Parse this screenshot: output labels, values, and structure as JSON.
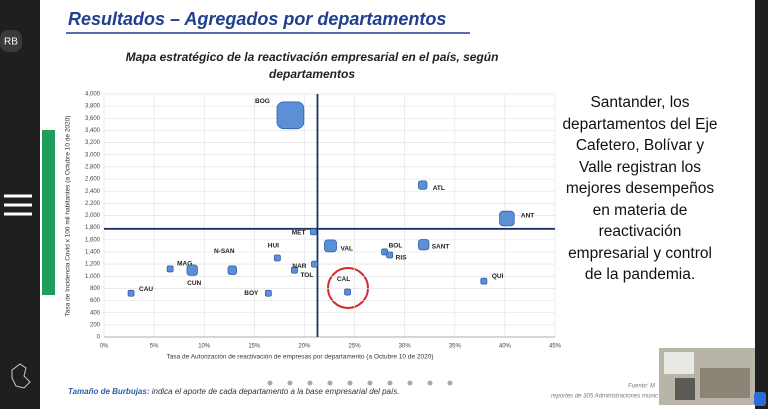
{
  "slide": {
    "badge": "RB",
    "heading": "Resultados – Agregados por departamentos",
    "side_text": "Santander, los departamentos del Eje Cafetero, Bolívar y Valle registran los mejores desempeños en materia de reactivación empresarial y control de la pandemia.",
    "footer_label": "Tamaño de Burbujas:",
    "footer_text": " indica el aporte de cada departamento a la base empresarial del país.",
    "source_line1": "Fuente: M",
    "source_line2": "reportes de 305 Administraciones munic"
  },
  "chart_data": {
    "type": "bubble",
    "title": "Mapa estratégico de la reactivación empresarial en el país, según departamentos",
    "x_label": "Tasa de Autorización de reactivación de empresas por departamento (a Octubre 10 de 2020)",
    "y_label": "Tasa de Incidencia Covid x 100 mil habitantes (a Octubre 10 de 2020)",
    "categories": [
      "BOG",
      "ATL",
      "ANT",
      "MET",
      "VAL",
      "BOL",
      "SANT",
      "RIS",
      "HUI",
      "NAR",
      "TOL",
      "N-SAN",
      "MAG",
      "CUN",
      "QUI",
      "CAL",
      "BOY",
      "CAU"
    ],
    "x": [
      18.6,
      31.8,
      40.2,
      20.9,
      22.6,
      28.0,
      31.9,
      28.5,
      17.3,
      19.0,
      21.0,
      12.8,
      6.6,
      8.8,
      37.9,
      24.3,
      16.4,
      2.7
    ],
    "values": [
      3650,
      2500,
      1950,
      1730,
      1500,
      1400,
      1520,
      1350,
      1300,
      1100,
      1200,
      1100,
      1120,
      1100,
      920,
      740,
      720,
      720
    ],
    "sizes": [
      20,
      2,
      6,
      1,
      4,
      1,
      3,
      1,
      1,
      1,
      1,
      2,
      1,
      3,
      1,
      1,
      1,
      1
    ],
    "color": "#5b8fd6",
    "reference_lines": {
      "x": 21.3,
      "y": 1780
    },
    "xlim": [
      0,
      45
    ],
    "xticks": [
      {
        "value": 0,
        "label": "0%"
      },
      {
        "value": 5,
        "label": "5%"
      },
      {
        "value": 10,
        "label": "10%"
      },
      {
        "value": 15,
        "label": "15%"
      },
      {
        "value": 20,
        "label": "20%"
      },
      {
        "value": 25,
        "label": "25%"
      },
      {
        "value": 30,
        "label": "30%"
      },
      {
        "value": 35,
        "label": "35%"
      },
      {
        "value": 40,
        "label": "40%"
      },
      {
        "value": 45,
        "label": "45%"
      }
    ],
    "ylim": [
      0,
      4000
    ],
    "yticks": [
      0,
      200,
      400,
      600,
      800,
      {
        "value": 1000,
        "label": "1,000"
      },
      {
        "value": 1200,
        "label": "1,200"
      },
      {
        "value": 1400,
        "label": "1,400"
      },
      {
        "value": 1600,
        "label": "1,600"
      },
      {
        "value": 1800,
        "label": "1,800"
      },
      {
        "value": 2000,
        "label": "2,000"
      },
      {
        "value": 2200,
        "label": "2,200"
      },
      {
        "value": 2400,
        "label": "2,400"
      },
      {
        "value": 2600,
        "label": "2,600"
      },
      {
        "value": 2800,
        "label": "2,800"
      },
      {
        "value": 3000,
        "label": "3,000"
      },
      {
        "value": 3200,
        "label": "3,200"
      },
      {
        "value": 3400,
        "label": "3,400"
      },
      {
        "value": 3600,
        "label": "3,600"
      },
      {
        "value": 3800,
        "label": "3,800"
      },
      {
        "value": 4000,
        "label": "4,000"
      }
    ],
    "grid": true
  }
}
